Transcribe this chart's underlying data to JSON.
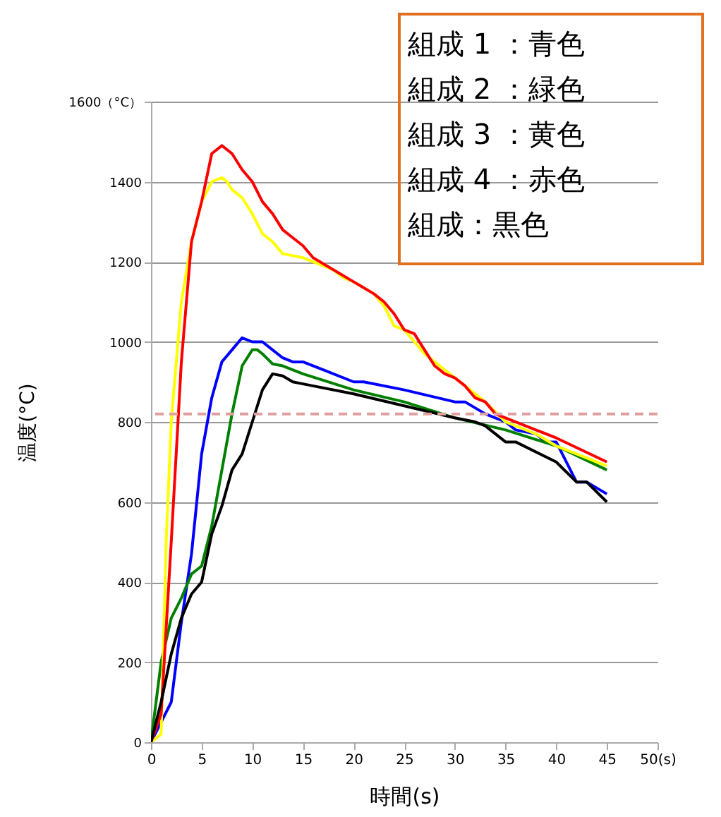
{
  "chart_data": {
    "type": "line",
    "xlabel": "時間(s)",
    "ylabel": "温度(°C)",
    "xlim": [
      0,
      50
    ],
    "xticks": [
      0,
      5,
      10,
      15,
      20,
      25,
      30,
      35,
      40,
      45,
      {
        "value": 50,
        "label": "50(s)"
      }
    ],
    "ylim": [
      0,
      1600
    ],
    "yticks": [
      0,
      200,
      400,
      600,
      800,
      1000,
      1200,
      1400,
      {
        "value": 1600,
        "label": "1600（°C）"
      }
    ],
    "grid": "y",
    "legend": false,
    "marker": "none",
    "line_style": "solid",
    "annotations": [
      "組成 1 ：青色",
      "組成 2 ：緑色",
      "組成 3 ：黄色",
      "組成 4 ：赤色",
      "組成：黒色"
    ],
    "ref_lines": [
      {
        "axis": "y",
        "value": 820,
        "label": null,
        "color": "#e0a0a0",
        "line_style": "dashed"
      }
    ],
    "series": [
      {
        "color": "#0000ff",
        "x": [
          0,
          1,
          2,
          3,
          4,
          5,
          6,
          7,
          8,
          9,
          10,
          11,
          12,
          13,
          14,
          15,
          17,
          20,
          21,
          25,
          30,
          31,
          33,
          34,
          35,
          36,
          38,
          39,
          40,
          42,
          43,
          45
        ],
        "values": [
          0,
          50,
          100,
          300,
          470,
          720,
          860,
          950,
          980,
          1010,
          1000,
          1000,
          980,
          960,
          950,
          950,
          930,
          900,
          900,
          880,
          850,
          850,
          820,
          810,
          800,
          780,
          770,
          750,
          750,
          650,
          650,
          620
        ]
      },
      {
        "color": "#008000",
        "x": [
          0,
          1,
          2,
          3,
          4,
          5,
          6,
          7,
          8,
          9,
          10,
          10.5,
          11,
          12,
          13,
          15,
          20,
          25,
          30,
          35,
          40,
          45
        ],
        "values": [
          0,
          200,
          310,
          360,
          420,
          440,
          540,
          680,
          820,
          940,
          980,
          980,
          970,
          945,
          940,
          920,
          880,
          850,
          810,
          780,
          740,
          680
        ]
      },
      {
        "color": "#ffff00",
        "x": [
          0,
          1,
          1.5,
          2,
          3,
          4,
          5,
          6,
          7,
          7.5,
          8,
          9,
          10,
          11,
          12,
          13,
          15,
          17,
          18,
          19,
          20,
          22,
          23,
          24,
          25,
          27,
          29,
          30,
          31,
          32,
          33,
          35,
          38,
          40,
          42,
          45
        ],
        "values": [
          0,
          20,
          500,
          800,
          1100,
          1250,
          1350,
          1400,
          1410,
          1400,
          1380,
          1360,
          1320,
          1270,
          1250,
          1220,
          1210,
          1190,
          1180,
          1160,
          1150,
          1120,
          1090,
          1040,
          1030,
          970,
          930,
          910,
          890,
          870,
          850,
          800,
          770,
          740,
          720,
          690
        ]
      },
      {
        "color": "#ff0000",
        "x": [
          0,
          1,
          2,
          3,
          4,
          5,
          6,
          7,
          8,
          9,
          10,
          11,
          12,
          13,
          14,
          15,
          16,
          20,
          22,
          23,
          24,
          25,
          26,
          27,
          28,
          29,
          30,
          31,
          32,
          33,
          34,
          35,
          40,
          45
        ],
        "values": [
          0,
          70,
          500,
          950,
          1250,
          1350,
          1470,
          1490,
          1470,
          1430,
          1400,
          1350,
          1320,
          1280,
          1260,
          1240,
          1210,
          1150,
          1120,
          1100,
          1070,
          1030,
          1020,
          980,
          940,
          920,
          910,
          890,
          860,
          850,
          820,
          810,
          760,
          700
        ]
      },
      {
        "color": "#000000",
        "x": [
          0,
          1,
          2,
          3,
          4,
          5,
          6,
          7,
          8,
          9,
          10,
          11,
          12,
          13,
          14,
          15,
          20,
          25,
          30,
          32,
          33,
          35,
          36,
          40,
          42,
          43,
          45
        ],
        "values": [
          0,
          100,
          220,
          310,
          370,
          400,
          520,
          590,
          680,
          720,
          800,
          880,
          920,
          915,
          900,
          895,
          870,
          840,
          810,
          800,
          790,
          750,
          750,
          700,
          650,
          650,
          600
        ]
      }
    ]
  }
}
